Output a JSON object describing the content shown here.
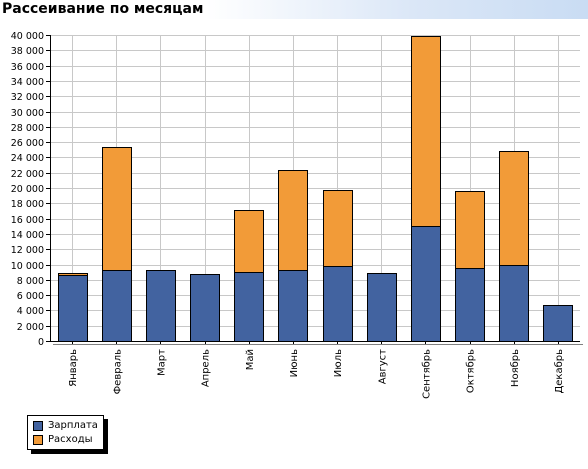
{
  "title": "Рассеивание по месяцам",
  "colors": {
    "salary": "#4263a0",
    "expenses": "#f29b38",
    "grid": "#c8c8c8",
    "axis": "#000000"
  },
  "chart_data": {
    "type": "bar",
    "stacked": true,
    "title": "Рассеивание по месяцам",
    "xlabel": "",
    "ylabel": "",
    "ylim": [
      0,
      40000
    ],
    "ytick_step": 2000,
    "yticks": [
      "0",
      "2 000",
      "4 000",
      "6 000",
      "8 000",
      "10 000",
      "12 000",
      "14 000",
      "16 000",
      "18 000",
      "20 000",
      "22 000",
      "24 000",
      "26 000",
      "28 000",
      "30 000",
      "32 000",
      "34 000",
      "36 000",
      "38 000",
      "40 000"
    ],
    "grid": true,
    "legend_position": "bottom-left",
    "categories": [
      "Январь",
      "Февраль",
      "Март",
      "Апрель",
      "Май",
      "Июнь",
      "Июль",
      "Август",
      "Сентябрь",
      "Октябрь",
      "Ноябрь",
      "Декабрь"
    ],
    "series": [
      {
        "name": "Зарплата",
        "color": "#4263a0",
        "values": [
          8600,
          9300,
          9300,
          8700,
          9000,
          9300,
          9800,
          8900,
          15000,
          9600,
          10000,
          4700
        ]
      },
      {
        "name": "Расходы",
        "color": "#f29b38",
        "values": [
          300,
          16000,
          0,
          0,
          8100,
          13000,
          10000,
          0,
          24900,
          10000,
          14900,
          0
        ]
      }
    ]
  }
}
